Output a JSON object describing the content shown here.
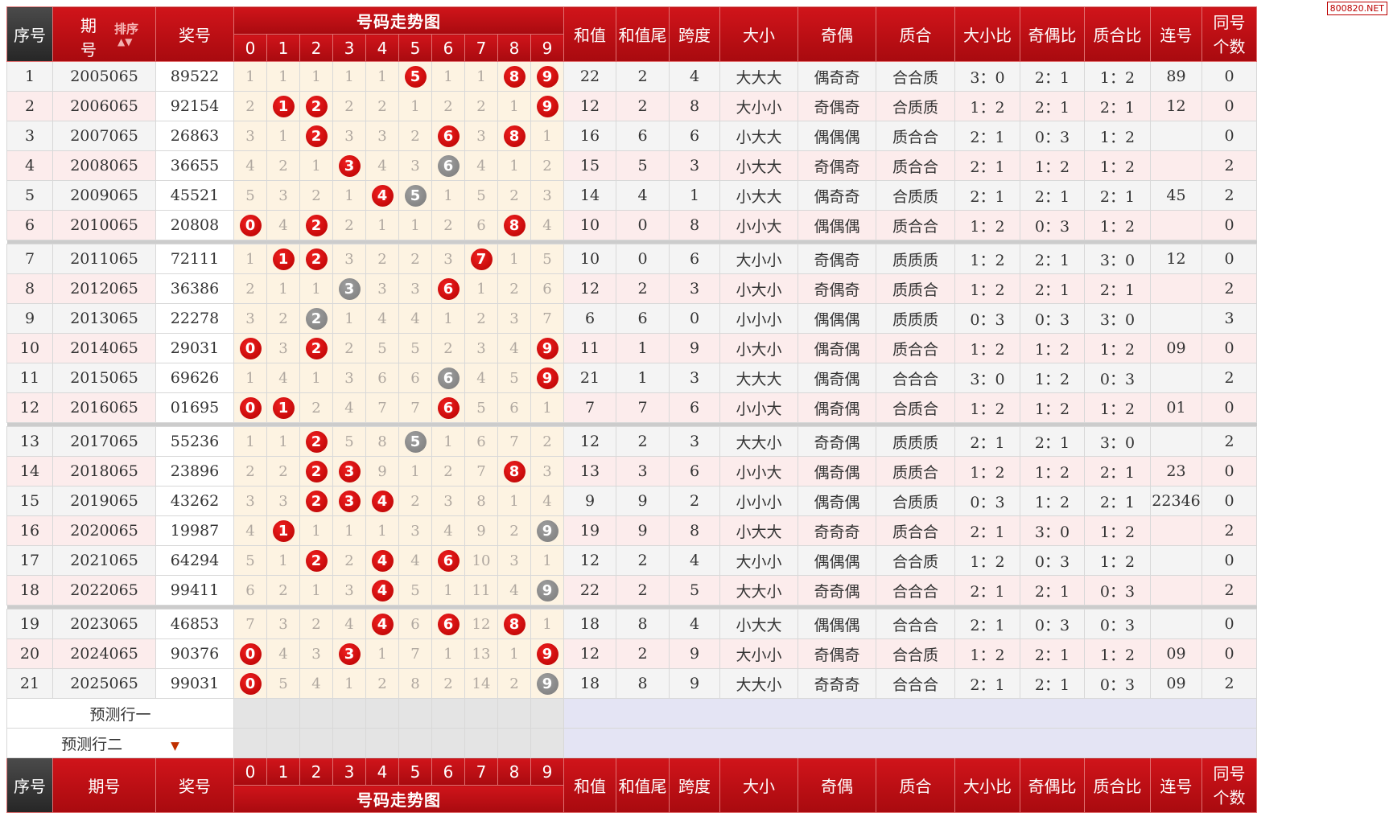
{
  "brand": "800820.NET",
  "header": {
    "seq": "序号",
    "period_a": "期",
    "period_b": "号",
    "period": "期号",
    "sort": "排序",
    "number": "奖号",
    "trend": "号码走势图",
    "digits": [
      "0",
      "1",
      "2",
      "3",
      "4",
      "5",
      "6",
      "7",
      "8",
      "9"
    ],
    "cols": [
      "和值",
      "和值尾",
      "跨度",
      "大小",
      "奇偶",
      "质合",
      "大小比",
      "奇偶比",
      "质合比",
      "连号"
    ],
    "same_a": "同号",
    "same_b": "个数"
  },
  "colors": {
    "header_red": "#c8101a",
    "seq_dark": "#333333",
    "ball_red": "#d00000",
    "ball_gray": "#8c8c8c"
  },
  "rows": [
    {
      "seq": "1",
      "period": "2005065",
      "num": "89522",
      "cells": [
        [
          "1",
          ""
        ],
        [
          "1",
          ""
        ],
        [
          "1",
          ""
        ],
        [
          "1",
          ""
        ],
        [
          "1",
          ""
        ],
        [
          "5",
          "r"
        ],
        [
          "1",
          ""
        ],
        [
          "1",
          ""
        ],
        [
          "8",
          "r"
        ],
        [
          "9",
          "r"
        ]
      ],
      "sum": "22",
      "tail": "2",
      "span": "4",
      "size": "大大大",
      "parity": "偶奇奇",
      "prime": "合合质",
      "sr": "3：0",
      "pr": "2：1",
      "qr": "1：2",
      "lian": "89",
      "same": "0"
    },
    {
      "seq": "2",
      "period": "2006065",
      "num": "92154",
      "cells": [
        [
          "2",
          ""
        ],
        [
          "1",
          "r"
        ],
        [
          "2",
          "r"
        ],
        [
          "2",
          ""
        ],
        [
          "2",
          ""
        ],
        [
          "1",
          ""
        ],
        [
          "2",
          ""
        ],
        [
          "2",
          ""
        ],
        [
          "1",
          ""
        ],
        [
          "9",
          "r"
        ]
      ],
      "sum": "12",
      "tail": "2",
      "span": "8",
      "size": "大小小",
      "parity": "奇偶奇",
      "prime": "合质质",
      "sr": "1：2",
      "pr": "2：1",
      "qr": "2：1",
      "lian": "12",
      "same": "0"
    },
    {
      "seq": "3",
      "period": "2007065",
      "num": "26863",
      "cells": [
        [
          "3",
          ""
        ],
        [
          "1",
          ""
        ],
        [
          "2",
          "r"
        ],
        [
          "3",
          ""
        ],
        [
          "3",
          ""
        ],
        [
          "2",
          ""
        ],
        [
          "6",
          "r"
        ],
        [
          "3",
          ""
        ],
        [
          "8",
          "r"
        ],
        [
          "1",
          ""
        ]
      ],
      "sum": "16",
      "tail": "6",
      "span": "6",
      "size": "小大大",
      "parity": "偶偶偶",
      "prime": "质合合",
      "sr": "2：1",
      "pr": "0：3",
      "qr": "1：2",
      "lian": "",
      "same": "0"
    },
    {
      "seq": "4",
      "period": "2008065",
      "num": "36655",
      "cells": [
        [
          "4",
          ""
        ],
        [
          "2",
          ""
        ],
        [
          "1",
          ""
        ],
        [
          "3",
          "r"
        ],
        [
          "4",
          ""
        ],
        [
          "3",
          ""
        ],
        [
          "6",
          "g"
        ],
        [
          "4",
          ""
        ],
        [
          "1",
          ""
        ],
        [
          "2",
          ""
        ]
      ],
      "sum": "15",
      "tail": "5",
      "span": "3",
      "size": "小大大",
      "parity": "奇偶奇",
      "prime": "质合合",
      "sr": "2：1",
      "pr": "1：2",
      "qr": "1：2",
      "lian": "",
      "same": "2"
    },
    {
      "seq": "5",
      "period": "2009065",
      "num": "45521",
      "cells": [
        [
          "5",
          ""
        ],
        [
          "3",
          ""
        ],
        [
          "2",
          ""
        ],
        [
          "1",
          ""
        ],
        [
          "4",
          "r"
        ],
        [
          "5",
          "g"
        ],
        [
          "1",
          ""
        ],
        [
          "5",
          ""
        ],
        [
          "2",
          ""
        ],
        [
          "3",
          ""
        ]
      ],
      "sum": "14",
      "tail": "4",
      "span": "1",
      "size": "小大大",
      "parity": "偶奇奇",
      "prime": "合质质",
      "sr": "2：1",
      "pr": "2：1",
      "qr": "2：1",
      "lian": "45",
      "same": "2"
    },
    {
      "seq": "6",
      "period": "2010065",
      "num": "20808",
      "cells": [
        [
          "0",
          "r"
        ],
        [
          "4",
          ""
        ],
        [
          "2",
          "r"
        ],
        [
          "2",
          ""
        ],
        [
          "1",
          ""
        ],
        [
          "1",
          ""
        ],
        [
          "2",
          ""
        ],
        [
          "6",
          ""
        ],
        [
          "8",
          "r"
        ],
        [
          "4",
          ""
        ]
      ],
      "sum": "10",
      "tail": "0",
      "span": "8",
      "size": "小小大",
      "parity": "偶偶偶",
      "prime": "质合合",
      "sr": "1：2",
      "pr": "0：3",
      "qr": "1：2",
      "lian": "",
      "same": "0"
    },
    {
      "seq": "7",
      "period": "2011065",
      "num": "72111",
      "cells": [
        [
          "1",
          ""
        ],
        [
          "1",
          "r"
        ],
        [
          "2",
          "r"
        ],
        [
          "3",
          ""
        ],
        [
          "2",
          ""
        ],
        [
          "2",
          ""
        ],
        [
          "3",
          ""
        ],
        [
          "7",
          "r"
        ],
        [
          "1",
          ""
        ],
        [
          "5",
          ""
        ]
      ],
      "sum": "10",
      "tail": "0",
      "span": "6",
      "size": "大小小",
      "parity": "奇偶奇",
      "prime": "质质质",
      "sr": "1：2",
      "pr": "2：1",
      "qr": "3：0",
      "lian": "12",
      "same": "0"
    },
    {
      "seq": "8",
      "period": "2012065",
      "num": "36386",
      "cells": [
        [
          "2",
          ""
        ],
        [
          "1",
          ""
        ],
        [
          "1",
          ""
        ],
        [
          "3",
          "g"
        ],
        [
          "3",
          ""
        ],
        [
          "3",
          ""
        ],
        [
          "6",
          "r"
        ],
        [
          "1",
          ""
        ],
        [
          "2",
          ""
        ],
        [
          "6",
          ""
        ]
      ],
      "sum": "12",
      "tail": "2",
      "span": "3",
      "size": "小大小",
      "parity": "奇偶奇",
      "prime": "质质合",
      "sr": "1：2",
      "pr": "2：1",
      "qr": "2：1",
      "lian": "",
      "same": "2"
    },
    {
      "seq": "9",
      "period": "2013065",
      "num": "22278",
      "cells": [
        [
          "3",
          ""
        ],
        [
          "2",
          ""
        ],
        [
          "2",
          "g"
        ],
        [
          "1",
          ""
        ],
        [
          "4",
          ""
        ],
        [
          "4",
          ""
        ],
        [
          "1",
          ""
        ],
        [
          "2",
          ""
        ],
        [
          "3",
          ""
        ],
        [
          "7",
          ""
        ]
      ],
      "sum": "6",
      "tail": "6",
      "span": "0",
      "size": "小小小",
      "parity": "偶偶偶",
      "prime": "质质质",
      "sr": "0：3",
      "pr": "0：3",
      "qr": "3：0",
      "lian": "",
      "same": "3"
    },
    {
      "seq": "10",
      "period": "2014065",
      "num": "29031",
      "cells": [
        [
          "0",
          "r"
        ],
        [
          "3",
          ""
        ],
        [
          "2",
          "r"
        ],
        [
          "2",
          ""
        ],
        [
          "5",
          ""
        ],
        [
          "5",
          ""
        ],
        [
          "2",
          ""
        ],
        [
          "3",
          ""
        ],
        [
          "4",
          ""
        ],
        [
          "9",
          "r"
        ]
      ],
      "sum": "11",
      "tail": "1",
      "span": "9",
      "size": "小大小",
      "parity": "偶奇偶",
      "prime": "质合合",
      "sr": "1：2",
      "pr": "1：2",
      "qr": "1：2",
      "lian": "09",
      "same": "0"
    },
    {
      "seq": "11",
      "period": "2015065",
      "num": "69626",
      "cells": [
        [
          "1",
          ""
        ],
        [
          "4",
          ""
        ],
        [
          "1",
          ""
        ],
        [
          "3",
          ""
        ],
        [
          "6",
          ""
        ],
        [
          "6",
          ""
        ],
        [
          "6",
          "g"
        ],
        [
          "4",
          ""
        ],
        [
          "5",
          ""
        ],
        [
          "9",
          "r"
        ]
      ],
      "sum": "21",
      "tail": "1",
      "span": "3",
      "size": "大大大",
      "parity": "偶奇偶",
      "prime": "合合合",
      "sr": "3：0",
      "pr": "1：2",
      "qr": "0：3",
      "lian": "",
      "same": "2"
    },
    {
      "seq": "12",
      "period": "2016065",
      "num": "01695",
      "cells": [
        [
          "0",
          "r"
        ],
        [
          "1",
          "r"
        ],
        [
          "2",
          ""
        ],
        [
          "4",
          ""
        ],
        [
          "7",
          ""
        ],
        [
          "7",
          ""
        ],
        [
          "6",
          "r"
        ],
        [
          "5",
          ""
        ],
        [
          "6",
          ""
        ],
        [
          "1",
          ""
        ]
      ],
      "sum": "7",
      "tail": "7",
      "span": "6",
      "size": "小小大",
      "parity": "偶奇偶",
      "prime": "合质合",
      "sr": "1：2",
      "pr": "1：2",
      "qr": "1：2",
      "lian": "01",
      "same": "0"
    },
    {
      "seq": "13",
      "period": "2017065",
      "num": "55236",
      "cells": [
        [
          "1",
          ""
        ],
        [
          "1",
          ""
        ],
        [
          "2",
          "r"
        ],
        [
          "5",
          ""
        ],
        [
          "8",
          ""
        ],
        [
          "5",
          "g"
        ],
        [
          "1",
          ""
        ],
        [
          "6",
          ""
        ],
        [
          "7",
          ""
        ],
        [
          "2",
          ""
        ]
      ],
      "sum": "12",
      "tail": "2",
      "span": "3",
      "size": "大大小",
      "parity": "奇奇偶",
      "prime": "质质质",
      "sr": "2：1",
      "pr": "2：1",
      "qr": "3：0",
      "lian": "",
      "same": "2"
    },
    {
      "seq": "14",
      "period": "2018065",
      "num": "23896",
      "cells": [
        [
          "2",
          ""
        ],
        [
          "2",
          ""
        ],
        [
          "2",
          "r"
        ],
        [
          "3",
          "r"
        ],
        [
          "9",
          ""
        ],
        [
          "1",
          ""
        ],
        [
          "2",
          ""
        ],
        [
          "7",
          ""
        ],
        [
          "8",
          "r"
        ],
        [
          "3",
          ""
        ]
      ],
      "sum": "13",
      "tail": "3",
      "span": "6",
      "size": "小小大",
      "parity": "偶奇偶",
      "prime": "质质合",
      "sr": "1：2",
      "pr": "1：2",
      "qr": "2：1",
      "lian": "23",
      "same": "0"
    },
    {
      "seq": "15",
      "period": "2019065",
      "num": "43262",
      "cells": [
        [
          "3",
          ""
        ],
        [
          "3",
          ""
        ],
        [
          "2",
          "r"
        ],
        [
          "3",
          "r"
        ],
        [
          "4",
          "r"
        ],
        [
          "2",
          ""
        ],
        [
          "3",
          ""
        ],
        [
          "8",
          ""
        ],
        [
          "1",
          ""
        ],
        [
          "4",
          ""
        ]
      ],
      "sum": "9",
      "tail": "9",
      "span": "2",
      "size": "小小小",
      "parity": "偶奇偶",
      "prime": "合质质",
      "sr": "0：3",
      "pr": "1：2",
      "qr": "2：1",
      "lian": "22346",
      "same": "0"
    },
    {
      "seq": "16",
      "period": "2020065",
      "num": "19987",
      "cells": [
        [
          "4",
          ""
        ],
        [
          "1",
          "r"
        ],
        [
          "1",
          ""
        ],
        [
          "1",
          ""
        ],
        [
          "1",
          ""
        ],
        [
          "3",
          ""
        ],
        [
          "4",
          ""
        ],
        [
          "9",
          ""
        ],
        [
          "2",
          ""
        ],
        [
          "9",
          "g"
        ]
      ],
      "sum": "19",
      "tail": "9",
      "span": "8",
      "size": "小大大",
      "parity": "奇奇奇",
      "prime": "质合合",
      "sr": "2：1",
      "pr": "3：0",
      "qr": "1：2",
      "lian": "",
      "same": "2"
    },
    {
      "seq": "17",
      "period": "2021065",
      "num": "64294",
      "cells": [
        [
          "5",
          ""
        ],
        [
          "1",
          ""
        ],
        [
          "2",
          "r"
        ],
        [
          "2",
          ""
        ],
        [
          "4",
          "r"
        ],
        [
          "4",
          ""
        ],
        [
          "6",
          "r"
        ],
        [
          "10",
          ""
        ],
        [
          "3",
          ""
        ],
        [
          "1",
          ""
        ]
      ],
      "sum": "12",
      "tail": "2",
      "span": "4",
      "size": "大小小",
      "parity": "偶偶偶",
      "prime": "合合质",
      "sr": "1：2",
      "pr": "0：3",
      "qr": "1：2",
      "lian": "",
      "same": "0"
    },
    {
      "seq": "18",
      "period": "2022065",
      "num": "99411",
      "cells": [
        [
          "6",
          ""
        ],
        [
          "2",
          ""
        ],
        [
          "1",
          ""
        ],
        [
          "3",
          ""
        ],
        [
          "4",
          "r"
        ],
        [
          "5",
          ""
        ],
        [
          "1",
          ""
        ],
        [
          "11",
          ""
        ],
        [
          "4",
          ""
        ],
        [
          "9",
          "g"
        ]
      ],
      "sum": "22",
      "tail": "2",
      "span": "5",
      "size": "大大小",
      "parity": "奇奇偶",
      "prime": "合合合",
      "sr": "2：1",
      "pr": "2：1",
      "qr": "0：3",
      "lian": "",
      "same": "2"
    },
    {
      "seq": "19",
      "period": "2023065",
      "num": "46853",
      "cells": [
        [
          "7",
          ""
        ],
        [
          "3",
          ""
        ],
        [
          "2",
          ""
        ],
        [
          "4",
          ""
        ],
        [
          "4",
          "r"
        ],
        [
          "6",
          ""
        ],
        [
          "6",
          "r"
        ],
        [
          "12",
          ""
        ],
        [
          "8",
          "r"
        ],
        [
          "1",
          ""
        ]
      ],
      "sum": "18",
      "tail": "8",
      "span": "4",
      "size": "小大大",
      "parity": "偶偶偶",
      "prime": "合合合",
      "sr": "2：1",
      "pr": "0：3",
      "qr": "0：3",
      "lian": "",
      "same": "0"
    },
    {
      "seq": "20",
      "period": "2024065",
      "num": "90376",
      "cells": [
        [
          "0",
          "r"
        ],
        [
          "4",
          ""
        ],
        [
          "3",
          ""
        ],
        [
          "3",
          "r"
        ],
        [
          "1",
          ""
        ],
        [
          "7",
          ""
        ],
        [
          "1",
          ""
        ],
        [
          "13",
          ""
        ],
        [
          "1",
          ""
        ],
        [
          "9",
          "r"
        ]
      ],
      "sum": "12",
      "tail": "2",
      "span": "9",
      "size": "大小小",
      "parity": "奇偶奇",
      "prime": "合合质",
      "sr": "1：2",
      "pr": "2：1",
      "qr": "1：2",
      "lian": "09",
      "same": "0"
    },
    {
      "seq": "21",
      "period": "2025065",
      "num": "99031",
      "cells": [
        [
          "0",
          "r"
        ],
        [
          "5",
          ""
        ],
        [
          "4",
          ""
        ],
        [
          "1",
          ""
        ],
        [
          "2",
          ""
        ],
        [
          "8",
          ""
        ],
        [
          "2",
          ""
        ],
        [
          "14",
          ""
        ],
        [
          "2",
          ""
        ],
        [
          "9",
          "g"
        ]
      ],
      "sum": "18",
      "tail": "8",
      "span": "9",
      "size": "大大小",
      "parity": "奇奇奇",
      "prime": "合合合",
      "sr": "2：1",
      "pr": "2：1",
      "qr": "0：3",
      "lian": "09",
      "same": "2"
    }
  ],
  "predict": [
    "预测行一",
    "预测行二"
  ]
}
